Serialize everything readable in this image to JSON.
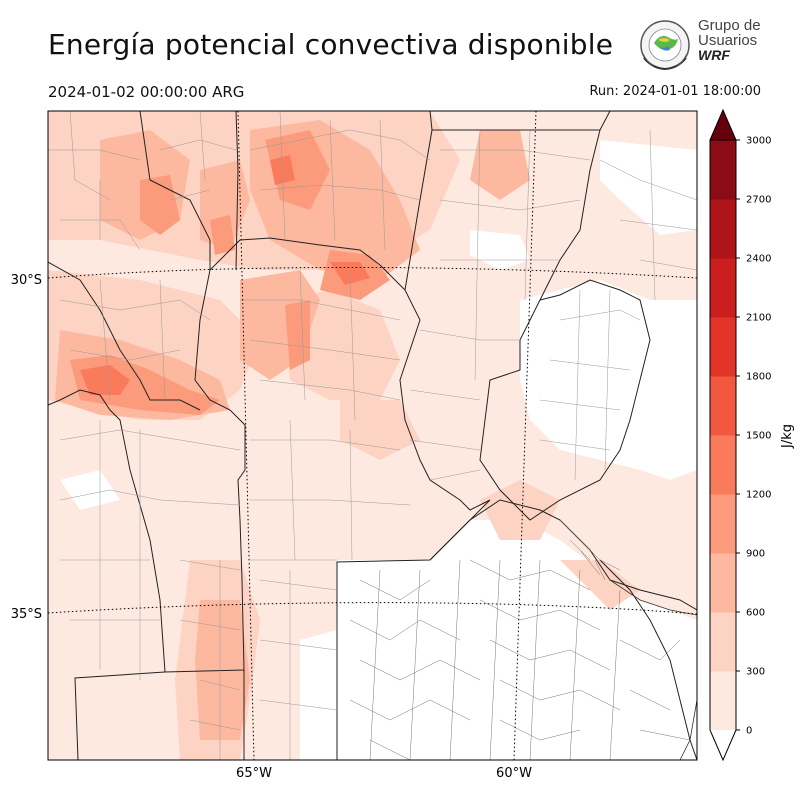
{
  "header": {
    "title": "Energía potencial convectiva disponible",
    "valid_time": "2024-01-02 00:00:00 ARG",
    "run_time": "Run: 2024-01-01 18:00:00"
  },
  "logo": {
    "line1": "Grupo de",
    "line2": "Usuarios",
    "line3": "WRF"
  },
  "map": {
    "lat_labels": [
      "30°S",
      "35°S"
    ],
    "lon_labels": [
      "65°W",
      "60°W"
    ]
  },
  "colorbar": {
    "label": "J/kg",
    "ticks": [
      "3000",
      "2700",
      "2400",
      "2100",
      "1800",
      "1500",
      "1200",
      "900",
      "600",
      "300",
      "0"
    ],
    "levels": [
      0,
      300,
      600,
      900,
      1200,
      1500,
      1800,
      2100,
      2400,
      2700,
      3000
    ],
    "colors": [
      "#fee9e1",
      "#fdd3c3",
      "#fcb9a0",
      "#fc9a7c",
      "#f97b5b",
      "#f2573f",
      "#e33429",
      "#cb1e1e",
      "#ad1317",
      "#8b0c14"
    ],
    "extend_max_color": "#67000d"
  }
}
